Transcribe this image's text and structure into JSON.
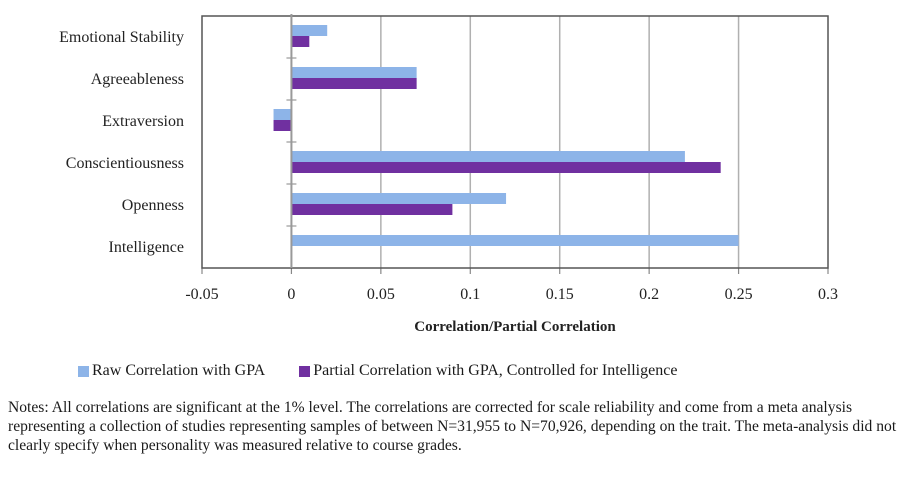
{
  "chart_data": {
    "type": "bar",
    "orientation": "horizontal",
    "title": "",
    "categories": [
      "Emotional Stability",
      "Agreeableness",
      "Extraversion",
      "Conscientiousness",
      "Openness",
      "Intelligence"
    ],
    "series": [
      {
        "name": "Raw Correlation with GPA",
        "color": "#8db4e8",
        "values": [
          0.02,
          0.07,
          -0.01,
          0.22,
          0.12,
          0.25
        ]
      },
      {
        "name": "Partial Correlation with GPA, Controlled for Intelligence",
        "color": "#7030a0",
        "values": [
          0.01,
          0.07,
          -0.01,
          0.24,
          0.09,
          null
        ]
      }
    ],
    "xlabel": "Correlation/Partial Correlation",
    "ylabel": "",
    "xlim": [
      -0.05,
      0.3
    ],
    "xticks": [
      -0.05,
      0,
      0.05,
      0.1,
      0.15,
      0.2,
      0.25,
      0.3
    ],
    "xtick_labels": [
      "-0.05",
      "0",
      "0.05",
      "0.1",
      "0.15",
      "0.2",
      "0.25",
      "0.3"
    ],
    "grid": "vertical",
    "legend_position": "bottom"
  },
  "legend": {
    "items": [
      {
        "label": "Raw Correlation with GPA",
        "color": "#8db4e8"
      },
      {
        "label": "Partial Correlation with GPA, Controlled for Intelligence",
        "color": "#7030a0"
      }
    ]
  },
  "notes": "Notes: All correlations are significant at the 1% level. The correlations are corrected for scale reliability and come from a meta analysis representing a collection of studies representing samples of between N=31,955 to N=70,926, depending on the trait. The meta-analysis did not clearly specify when personality was measured relative to course grades."
}
